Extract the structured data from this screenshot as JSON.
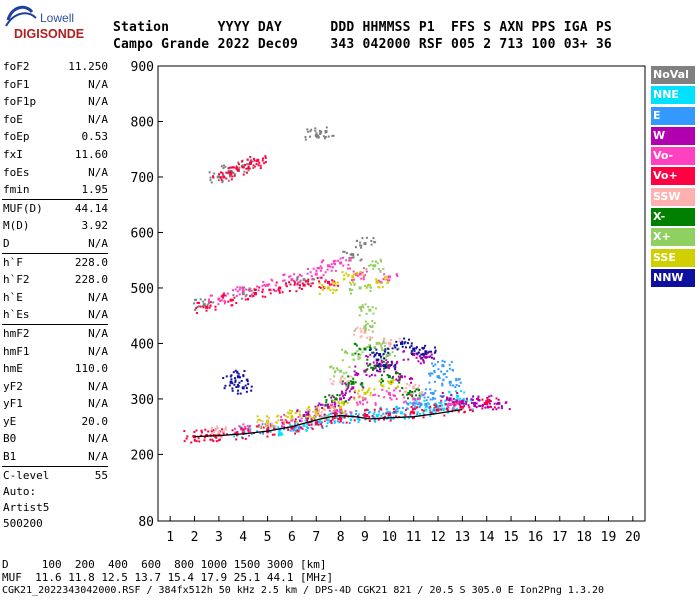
{
  "logo": {
    "brand": "Lowell",
    "product": "DIGISONDE"
  },
  "header": {
    "labels": [
      "Station",
      "YYYY",
      "DAY",
      "DDD",
      "HHMMSS",
      "P1",
      "FFS",
      "S",
      "AXN",
      "PPS",
      "IGA",
      "PS"
    ],
    "values": [
      "Campo Grande",
      "2022",
      "Dec09",
      "343",
      "042000",
      "RSF",
      "005",
      "2",
      "713",
      "100",
      "03+",
      "36"
    ]
  },
  "params": [
    [
      {
        "label": "foF2",
        "value": "11.250"
      },
      {
        "label": "foF1",
        "value": "N/A"
      },
      {
        "label": "foF1p",
        "value": "N/A"
      },
      {
        "label": "foE",
        "value": "N/A"
      },
      {
        "label": "foEp",
        "value": "0.53"
      },
      {
        "label": "fxI",
        "value": "11.60"
      },
      {
        "label": "foEs",
        "value": "N/A"
      },
      {
        "label": "fmin",
        "value": "1.95"
      }
    ],
    [
      {
        "label": "MUF(D)",
        "value": "44.14"
      },
      {
        "label": "M(D)",
        "value": "3.92"
      },
      {
        "label": "D",
        "value": "N/A"
      }
    ],
    [
      {
        "label": "h`F",
        "value": "228.0"
      },
      {
        "label": "h`F2",
        "value": "228.0"
      },
      {
        "label": "h`E",
        "value": "N/A"
      },
      {
        "label": "h`Es",
        "value": "N/A"
      }
    ],
    [
      {
        "label": "hmF2",
        "value": "N/A"
      },
      {
        "label": "hmF1",
        "value": "N/A"
      },
      {
        "label": "hmE",
        "value": "110.0"
      },
      {
        "label": "yF2",
        "value": "N/A"
      },
      {
        "label": "yF1",
        "value": "N/A"
      },
      {
        "label": "yE",
        "value": "20.0"
      },
      {
        "label": "B0",
        "value": "N/A"
      },
      {
        "label": "B1",
        "value": "N/A"
      }
    ],
    [
      {
        "label": "C-level",
        "value": "55"
      }
    ]
  ],
  "auto": [
    "Auto:",
    "Artist5",
    "500200"
  ],
  "legend": [
    {
      "label": "NoVal",
      "bg": "#808080",
      "fg": "#ffffff"
    },
    {
      "label": "NNE",
      "bg": "#00e0ff",
      "fg": "#ffffff"
    },
    {
      "label": "E",
      "bg": "#3399ff",
      "fg": "#ffffff"
    },
    {
      "label": "W",
      "bg": "#b000b0",
      "fg": "#ffffff"
    },
    {
      "label": "Vo-",
      "bg": "#ff40c0",
      "fg": "#ffffff"
    },
    {
      "label": "Vo+",
      "bg": "#ff0040",
      "fg": "#ffffff"
    },
    {
      "label": "SSW",
      "bg": "#ffb0b0",
      "fg": "#ffffff"
    },
    {
      "label": "X-",
      "bg": "#008000",
      "fg": "#ffffff"
    },
    {
      "label": "X+",
      "bg": "#90d060",
      "fg": "#ffffff"
    },
    {
      "label": "SSE",
      "bg": "#d0d000",
      "fg": "#ffffff"
    },
    {
      "label": "NNW",
      "bg": "#1010a0",
      "fg": "#ffffff"
    }
  ],
  "footer": {
    "d_line": "D     100  200  400  600  800 1000 1500 3000 [km]",
    "muf_line": "MUF  11.6 11.8 12.5 13.7 15.4 17.9 25.1 44.1 [MHz]",
    "file_line": "CGK21_2022343042000.RSF / 384fx512h 50 kHz 2.5 km / DPS-4D CGK21 821 / 20.5 S 305.0 E Ion2Png 1.3.20"
  },
  "chart_data": {
    "type": "scatter",
    "x_ticks": [
      "1",
      "2",
      "3",
      "4",
      "5",
      "6",
      "7",
      "8",
      "9",
      "10",
      "11",
      "12",
      "13",
      "14",
      "15",
      "16",
      "17",
      "18",
      "19",
      "20"
    ],
    "y_ticks": [
      "80",
      "200",
      "300",
      "400",
      "500",
      "600",
      "700",
      "800",
      "900"
    ],
    "xlim": [
      0.5,
      20.5
    ],
    "ylim": [
      80,
      900
    ],
    "grid": false,
    "series": [
      {
        "name": "NoVal",
        "color": "#808080",
        "points": [
          [
            3.0,
            700
          ],
          [
            3.5,
            710
          ],
          [
            4.0,
            720
          ],
          [
            7.0,
            775
          ],
          [
            7.4,
            782
          ],
          [
            2.4,
            470
          ],
          [
            4.0,
            490
          ],
          [
            6.5,
            515
          ],
          [
            8.5,
            560
          ],
          [
            9.0,
            580
          ]
        ]
      },
      {
        "name": "NNE",
        "color": "#00e0ff",
        "points": [
          [
            4.0,
            240
          ],
          [
            5.5,
            245
          ],
          [
            6.5,
            252
          ],
          [
            7.5,
            262
          ],
          [
            8.5,
            268
          ],
          [
            9.5,
            270
          ],
          [
            10.5,
            275
          ],
          [
            11.5,
            280
          ],
          [
            12.0,
            286
          ],
          [
            12.5,
            290
          ],
          [
            13.0,
            292
          ],
          [
            12.8,
            305
          ],
          [
            11.2,
            300
          ]
        ]
      },
      {
        "name": "E",
        "color": "#3399ff",
        "points": [
          [
            5.0,
            245
          ],
          [
            6.0,
            250
          ],
          [
            7.0,
            258
          ],
          [
            8.0,
            265
          ],
          [
            9.0,
            270
          ],
          [
            10.0,
            275
          ],
          [
            11.0,
            282
          ],
          [
            11.5,
            290
          ],
          [
            12.0,
            340
          ],
          [
            12.2,
            360
          ],
          [
            12.5,
            330
          ],
          [
            11.8,
            310
          ]
        ]
      },
      {
        "name": "W",
        "color": "#b000b0",
        "points": [
          [
            6.5,
            270
          ],
          [
            7.0,
            280
          ],
          [
            7.5,
            285
          ],
          [
            8.0,
            300
          ],
          [
            8.5,
            320
          ],
          [
            9.0,
            350
          ],
          [
            9.5,
            370
          ],
          [
            10.0,
            360
          ],
          [
            10.5,
            340
          ],
          [
            12.5,
            300
          ],
          [
            13.0,
            295
          ],
          [
            13.5,
            292
          ],
          [
            14.0,
            295
          ],
          [
            14.5,
            292
          ],
          [
            11.0,
            380
          ],
          [
            11.5,
            375
          ]
        ]
      },
      {
        "name": "Vo-",
        "color": "#ff40c0",
        "points": [
          [
            3.0,
            480
          ],
          [
            4.0,
            495
          ],
          [
            5.0,
            505
          ],
          [
            6.0,
            515
          ],
          [
            7.0,
            525
          ],
          [
            7.5,
            540
          ],
          [
            8.0,
            545
          ],
          [
            8.8,
            525
          ],
          [
            10.0,
            520
          ],
          [
            4.0,
            244
          ],
          [
            6.0,
            262
          ],
          [
            8.0,
            280
          ],
          [
            9.0,
            300
          ],
          [
            10.0,
            310
          ],
          [
            11.0,
            300
          ],
          [
            12.5,
            290
          ]
        ]
      },
      {
        "name": "Vo+",
        "color": "#ff0040",
        "points": [
          [
            2.0,
            232
          ],
          [
            2.5,
            234
          ],
          [
            3.0,
            235
          ],
          [
            4.0,
            238
          ],
          [
            5.0,
            242
          ],
          [
            6.0,
            248
          ],
          [
            7.0,
            256
          ],
          [
            8.0,
            264
          ],
          [
            9.0,
            270
          ],
          [
            10.0,
            272
          ],
          [
            11.0,
            275
          ],
          [
            12.0,
            280
          ],
          [
            13.0,
            285
          ],
          [
            14.0,
            292
          ],
          [
            2.5,
            465
          ],
          [
            3.5,
            478
          ],
          [
            4.5,
            490
          ],
          [
            5.5,
            500
          ],
          [
            6.5,
            505
          ],
          [
            7.5,
            510
          ],
          [
            3.2,
            700
          ],
          [
            3.8,
            712
          ],
          [
            4.3,
            725
          ],
          [
            4.6,
            730
          ]
        ]
      },
      {
        "name": "SSW",
        "color": "#ffb0b0",
        "points": [
          [
            3.0,
            240
          ],
          [
            5.0,
            255
          ],
          [
            7.0,
            272
          ],
          [
            8.0,
            330
          ],
          [
            9.0,
            420
          ],
          [
            10.0,
            400
          ],
          [
            11.0,
            320
          ]
        ]
      },
      {
        "name": "X-",
        "color": "#008000",
        "points": [
          [
            8.5,
            330
          ],
          [
            9.0,
            390
          ],
          [
            9.5,
            360
          ],
          [
            10.0,
            340
          ],
          [
            7.8,
            300
          ],
          [
            10.8,
            310
          ]
        ]
      },
      {
        "name": "X+",
        "color": "#90d060",
        "points": [
          [
            8.0,
            350
          ],
          [
            8.5,
            380
          ],
          [
            9.0,
            430
          ],
          [
            9.5,
            400
          ],
          [
            10.0,
            380
          ],
          [
            9.2,
            460
          ],
          [
            8.8,
            500
          ],
          [
            9.4,
            540
          ]
        ]
      },
      {
        "name": "SSE",
        "color": "#d0d000",
        "points": [
          [
            5.0,
            260
          ],
          [
            6.0,
            268
          ],
          [
            7.0,
            275
          ],
          [
            8.0,
            285
          ],
          [
            9.0,
            310
          ],
          [
            10.0,
            330
          ],
          [
            8.5,
            520
          ],
          [
            9.5,
            510
          ],
          [
            7.5,
            500
          ]
        ]
      },
      {
        "name": "NNW",
        "color": "#1010a0",
        "points": [
          [
            10.5,
            400
          ],
          [
            11.0,
            390
          ],
          [
            11.5,
            385
          ],
          [
            9.8,
            360
          ],
          [
            9.6,
            380
          ],
          [
            3.5,
            330
          ],
          [
            4.0,
            320
          ],
          [
            3.8,
            340
          ]
        ]
      }
    ],
    "trace": {
      "name": "",
      "color": "#000000",
      "points": [
        [
          2.0,
          232
        ],
        [
          3.0,
          234
        ],
        [
          4.0,
          237
        ],
        [
          5.0,
          242
        ],
        [
          6.0,
          250
        ],
        [
          7.0,
          262
        ],
        [
          7.6,
          268
        ],
        [
          8.0,
          270
        ],
        [
          8.6,
          268
        ],
        [
          9.2,
          264
        ],
        [
          10.0,
          266
        ],
        [
          11.0,
          268
        ],
        [
          12.0,
          274
        ],
        [
          13.0,
          281
        ]
      ]
    }
  }
}
